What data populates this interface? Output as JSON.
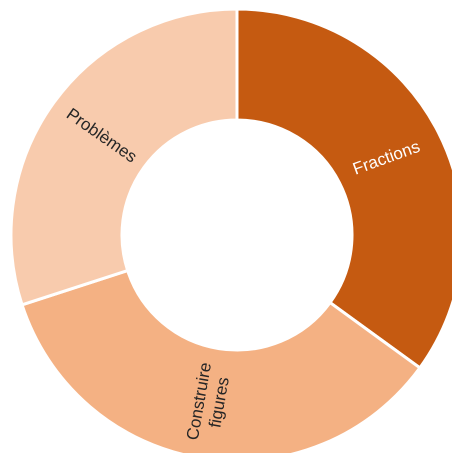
{
  "chart_data": {
    "type": "donut",
    "categories": [
      "Fractions",
      "Construire figures",
      "Problèmes"
    ],
    "values": [
      35,
      35,
      30
    ],
    "colors": [
      "#c55a11",
      "#f4b183",
      "#f8cbad"
    ],
    "label_colors": [
      "#ffffff",
      "#262626",
      "#262626"
    ]
  }
}
